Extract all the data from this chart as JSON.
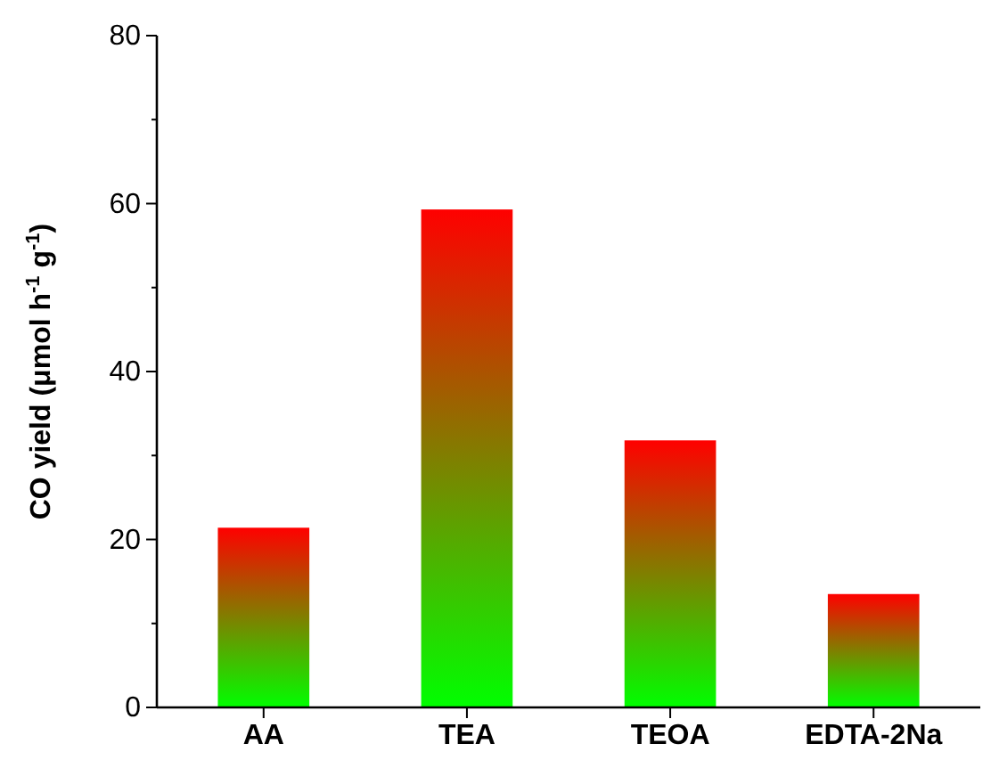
{
  "chart_data": {
    "type": "bar",
    "ylabel": "CO yield (μmol h$^{-1}$ g$^{-1}$)",
    "categories": [
      "AA",
      "TEA",
      "TEOA",
      "EDTA-2Na"
    ],
    "values": [
      21.4,
      59.3,
      31.8,
      13.5
    ],
    "color": "#ff0000",
    "ylim": [
      0,
      80
    ],
    "yticks": [
      0,
      {
        "value": 10,
        "label": null
      },
      20,
      {
        "value": 30,
        "label": null
      },
      40,
      {
        "value": 50,
        "label": null
      },
      60,
      {
        "value": 70,
        "label": null
      },
      80
    ]
  }
}
